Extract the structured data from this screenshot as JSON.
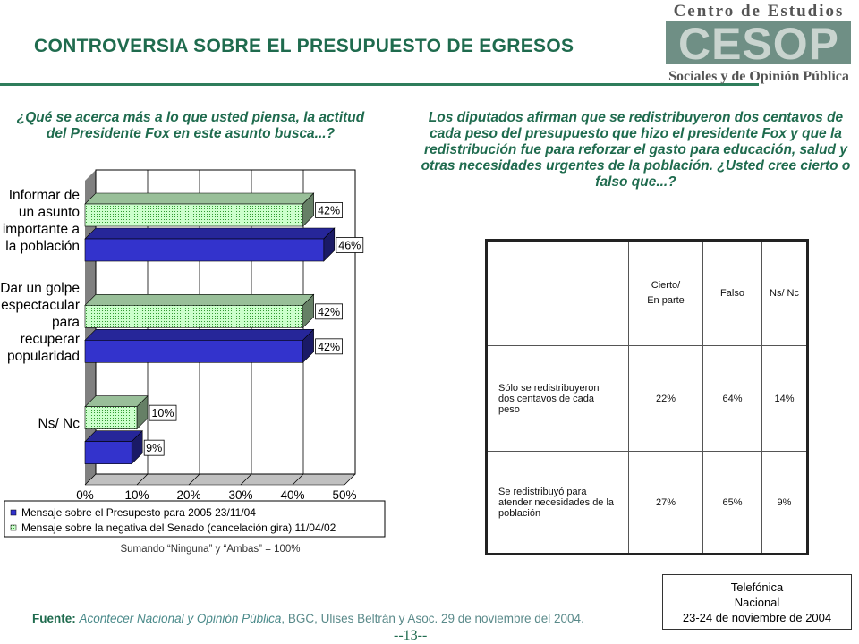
{
  "header": {
    "title": "CONTROVERSIA SOBRE EL PRESUPUESTO DE EGRESOS",
    "logo": {
      "line1": "Centro de Estudios",
      "mark": "CESOP",
      "line2": "Sociales y de Opinión Pública"
    }
  },
  "left": {
    "question": "¿Qué se acerca más a lo que usted piensa, la actitud del Presidente Fox en este asunto busca...?",
    "note": "Sumando “Ninguna” y “Ambas” = 100%"
  },
  "right": {
    "question": "Los diputados afirman que se redistribuyeron dos centavos de cada peso del presupuesto que hizo el presidente Fox y que la redistribución fue para reforzar el gasto para educación, salud y otras necesidades urgentes de la población. ¿Usted cree cierto o falso que...?",
    "table": {
      "columns": [
        "Cierto/\nEn parte",
        "Falso",
        "Ns/ Nc"
      ],
      "rows": [
        {
          "label": "Sólo se redistribuyeron dos centavos de cada peso",
          "values": [
            "22%",
            "64%",
            "14%"
          ]
        },
        {
          "label": "Se redistribuyó para atender necesidades de la población",
          "values": [
            "27%",
            "65%",
            "9%"
          ]
        }
      ]
    }
  },
  "footer": {
    "source_label": "Fuente:",
    "source_italic": "Acontecer Nacional y Opinión Pública",
    "source_rest": ", BGC,  Ulises Beltrán y Asoc. 29 de noviembre del 2004.",
    "page": "--13--",
    "box": [
      "Telefónica",
      "Nacional",
      "23-24 de noviembre de 2004"
    ]
  },
  "chart_data": {
    "type": "bar",
    "orientation": "horizontal",
    "categories": [
      [
        "Informar de",
        "un asunto",
        "importante a",
        "la población"
      ],
      [
        "Dar un golpe",
        "espectacular",
        "para",
        "recuperar",
        "popularidad"
      ],
      [
        "Ns/ Nc"
      ]
    ],
    "series": [
      {
        "name": "Mensaje sobre la negativa del Senado (cancelación gira) 11/04/02",
        "values": [
          42,
          42,
          10
        ],
        "labels": [
          "42%",
          "42%",
          "10%"
        ],
        "color": "#ccffcc"
      },
      {
        "name": "Mensaje sobre el Presupesto para 2005 23/11/04",
        "values": [
          46,
          42,
          9
        ],
        "labels": [
          "46%",
          "42%",
          "9%"
        ],
        "color": "#3333cc"
      }
    ],
    "xlim": [
      0,
      50
    ],
    "xticks": [
      "0%",
      "10%",
      "20%",
      "30%",
      "40%",
      "50%"
    ],
    "grid": true,
    "legend": "bottom"
  }
}
